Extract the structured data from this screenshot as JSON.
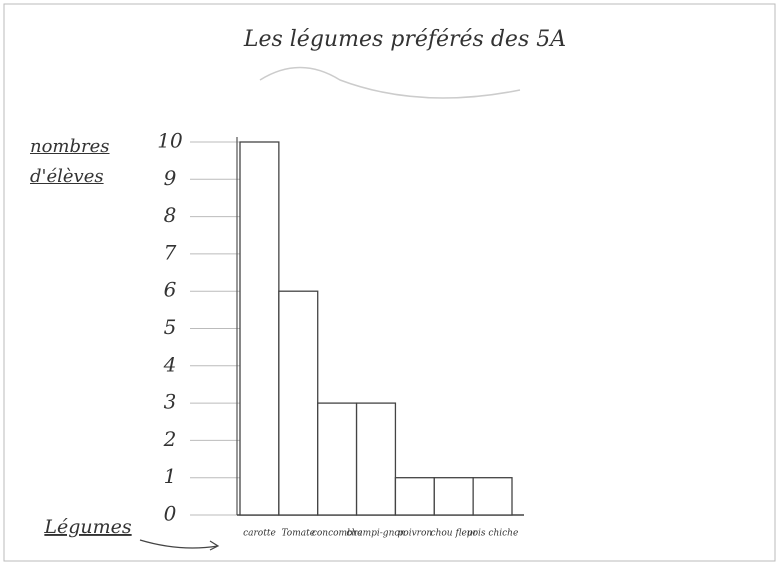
{
  "chart_data": {
    "type": "bar",
    "title": "Les légumes préférés des 5A",
    "ylabel": "nombres d'élèves",
    "xlabel": "Légumes",
    "categories": [
      "carotte",
      "Tomate",
      "concombre",
      "champi-gnon",
      "poivron",
      "chou fleur",
      "pois chiche"
    ],
    "values": [
      10,
      6,
      3,
      3,
      1,
      1,
      1
    ],
    "color": "#ffffff",
    "ylim": [
      0,
      10
    ],
    "yticks": [
      0,
      1,
      2,
      3,
      4,
      5,
      6,
      7,
      8,
      9,
      10
    ],
    "grid": true
  }
}
